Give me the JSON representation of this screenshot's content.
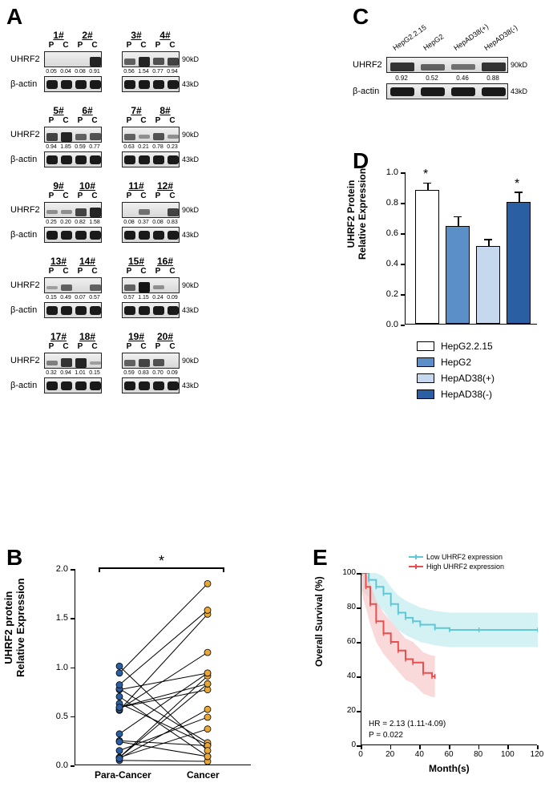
{
  "panelA": {
    "label": "A",
    "proteins": [
      "UHRF2",
      "β-actin"
    ],
    "kd_labels": [
      "90kD",
      "43kD"
    ],
    "pc": [
      "P",
      "C"
    ],
    "samples": [
      {
        "nums": [
          "1#",
          "2#"
        ],
        "quants": [
          "0.05",
          "0.04",
          "0.08",
          "0.91"
        ],
        "bands": [
          [
            0,
            0,
            0,
            9
          ],
          [
            10,
            10,
            10,
            10
          ]
        ]
      },
      {
        "nums": [
          "3#",
          "4#"
        ],
        "quants": [
          "0.56",
          "1.54",
          "0.77",
          "0.94"
        ],
        "bands": [
          [
            5,
            9,
            6,
            7
          ],
          [
            10,
            10,
            10,
            10
          ]
        ]
      },
      {
        "nums": [
          "5#",
          "6#"
        ],
        "quants": [
          "0.94",
          "1.85",
          "0.59",
          "0.77"
        ],
        "bands": [
          [
            7,
            9,
            5,
            6
          ],
          [
            10,
            10,
            10,
            10
          ]
        ]
      },
      {
        "nums": [
          "7#",
          "8#"
        ],
        "quants": [
          "0.63",
          "0.21",
          "0.78",
          "0.23"
        ],
        "bands": [
          [
            5,
            2,
            6,
            2
          ],
          [
            10,
            10,
            10,
            10
          ]
        ]
      },
      {
        "nums": [
          "9#",
          "10#"
        ],
        "quants": [
          "0.25",
          "0.20",
          "0.82",
          "1.58"
        ],
        "bands": [
          [
            2,
            2,
            7,
            9
          ],
          [
            10,
            10,
            10,
            10
          ]
        ]
      },
      {
        "nums": [
          "11#",
          "12#"
        ],
        "quants": [
          "0.08",
          "0.37",
          "0.08",
          "0.83"
        ],
        "bands": [
          [
            0,
            4,
            0,
            7
          ],
          [
            10,
            10,
            10,
            10
          ]
        ]
      },
      {
        "nums": [
          "13#",
          "14#"
        ],
        "quants": [
          "0.15",
          "0.49",
          "0.07",
          "0.57"
        ],
        "bands": [
          [
            1,
            5,
            0,
            5
          ],
          [
            10,
            10,
            10,
            10
          ]
        ]
      },
      {
        "nums": [
          "15#",
          "16#"
        ],
        "quants": [
          "0.57",
          "1.15",
          "0.24",
          "0.09"
        ],
        "bands": [
          [
            5,
            10,
            2,
            0
          ],
          [
            10,
            10,
            10,
            10
          ]
        ]
      },
      {
        "nums": [
          "17#",
          "18#"
        ],
        "quants": [
          "0.32",
          "0.94",
          "1.01",
          "0.15"
        ],
        "bands": [
          [
            3,
            8,
            9,
            1
          ],
          [
            10,
            10,
            10,
            10
          ]
        ]
      },
      {
        "nums": [
          "19#",
          "20#"
        ],
        "quants": [
          "0.59",
          "0.83",
          "0.70",
          "0.09"
        ],
        "bands": [
          [
            5,
            7,
            6,
            0
          ],
          [
            10,
            10,
            10,
            10
          ]
        ]
      }
    ]
  },
  "panelB": {
    "label": "B",
    "ylabel": "UHRF2 protein\nRelative Expression",
    "xcats": [
      "Para-Cancer",
      "Cancer"
    ],
    "ylim": [
      0,
      2.0
    ],
    "yticks": [
      0,
      0.5,
      1.0,
      1.5,
      2.0
    ],
    "sig": "*",
    "colors": {
      "para": "#2b5fa3",
      "cancer": "#e8a838"
    },
    "pairs": [
      [
        0.05,
        0.04
      ],
      [
        0.08,
        0.91
      ],
      [
        0.56,
        1.54
      ],
      [
        0.77,
        0.94
      ],
      [
        0.94,
        1.85
      ],
      [
        0.59,
        0.77
      ],
      [
        0.63,
        0.21
      ],
      [
        0.78,
        0.23
      ],
      [
        0.25,
        0.2
      ],
      [
        0.82,
        1.58
      ],
      [
        0.08,
        0.37
      ],
      [
        0.08,
        0.83
      ],
      [
        0.15,
        0.49
      ],
      [
        0.07,
        0.57
      ],
      [
        0.57,
        1.15
      ],
      [
        0.24,
        0.09
      ],
      [
        0.32,
        0.94
      ],
      [
        1.01,
        0.15
      ],
      [
        0.59,
        0.83
      ],
      [
        0.7,
        0.09
      ]
    ]
  },
  "panelC": {
    "label": "C",
    "cells": [
      "HepG2.2.15",
      "HepG2",
      "HepAD38(+)",
      "HepAD38(-)"
    ],
    "proteins": [
      "UHRF2",
      "β-actin"
    ],
    "kd_labels": [
      "90kD",
      "43kD"
    ],
    "quants": [
      "0.92",
      "0.52",
      "0.46",
      "0.88"
    ],
    "bands": [
      [
        8,
        5,
        4,
        8
      ],
      [
        10,
        10,
        10,
        10
      ]
    ]
  },
  "panelD": {
    "label": "D",
    "ylabel": "UHRF2 Protein\nRelative Expression",
    "ylim": [
      0,
      1.0
    ],
    "yticks": [
      0,
      0.2,
      0.4,
      0.6,
      0.8,
      1.0
    ],
    "bars": [
      {
        "name": "HepG2.2.15",
        "value": 0.88,
        "err": 0.04,
        "color": "#ffffff",
        "sig": "*"
      },
      {
        "name": "HepG2",
        "value": 0.64,
        "err": 0.06,
        "color": "#5b8fc7",
        "sig": ""
      },
      {
        "name": "HepAD38(+)",
        "value": 0.51,
        "err": 0.04,
        "color": "#c5d8ed",
        "sig": ""
      },
      {
        "name": "HepAD38(-)",
        "value": 0.8,
        "err": 0.06,
        "color": "#2b5fa3",
        "sig": "*"
      }
    ]
  },
  "panelE": {
    "label": "E",
    "ylabel": "Overall Survival (%)",
    "xlabel": "Month(s)",
    "xlim": [
      0,
      120
    ],
    "ylim": [
      0,
      100
    ],
    "xticks": [
      0,
      20,
      40,
      60,
      80,
      100,
      120
    ],
    "yticks": [
      0,
      20,
      40,
      60,
      80,
      100
    ],
    "legend": [
      {
        "name": "Low UHRF2 expression",
        "color": "#5fc8d6"
      },
      {
        "name": "High UHRF2 expression",
        "color": "#e85050"
      }
    ],
    "stats": {
      "hr": "HR = 2.13 (1.11-4.09)",
      "p": "P = 0.022"
    },
    "curve_low": [
      [
        0,
        100
      ],
      [
        5,
        96
      ],
      [
        10,
        92
      ],
      [
        15,
        88
      ],
      [
        20,
        82
      ],
      [
        25,
        77
      ],
      [
        30,
        74
      ],
      [
        35,
        72
      ],
      [
        40,
        70
      ],
      [
        50,
        68
      ],
      [
        60,
        67
      ],
      [
        80,
        67
      ],
      [
        120,
        67
      ]
    ],
    "curve_high": [
      [
        0,
        100
      ],
      [
        3,
        92
      ],
      [
        6,
        82
      ],
      [
        10,
        72
      ],
      [
        15,
        65
      ],
      [
        20,
        60
      ],
      [
        25,
        55
      ],
      [
        30,
        50
      ],
      [
        35,
        48
      ],
      [
        42,
        42
      ],
      [
        48,
        40
      ],
      [
        50,
        40
      ]
    ],
    "ci_low_color": "#b8e8ed",
    "ci_high_color": "#f5c0c0"
  }
}
